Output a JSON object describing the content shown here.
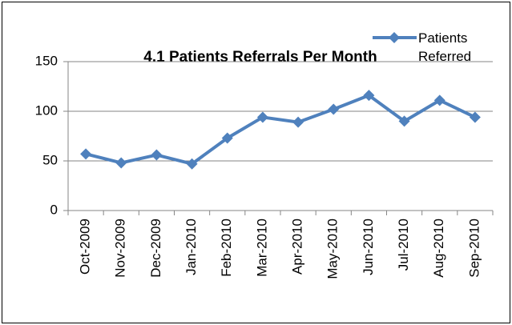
{
  "chart_data": {
    "type": "line",
    "title": "4.1 Patients Referrals Per Month",
    "categories": [
      "Oct-2009",
      "Nov-2009",
      "Dec-2009",
      "Jan-2010",
      "Feb-2010",
      "Mar-2010",
      "Apr-2010",
      "May-2010",
      "Jun-2010",
      "Jul-2010",
      "Aug-2010",
      "Sep-2010"
    ],
    "series": [
      {
        "name": "Patients Referred",
        "color": "#4f81bd",
        "values": [
          57,
          48,
          56,
          47,
          73,
          94,
          89,
          102,
          116,
          90,
          111,
          94
        ]
      }
    ],
    "ylim": [
      0,
      150
    ],
    "yticks": [
      0,
      50,
      100,
      150
    ],
    "grid": true,
    "legend": "top-right"
  }
}
